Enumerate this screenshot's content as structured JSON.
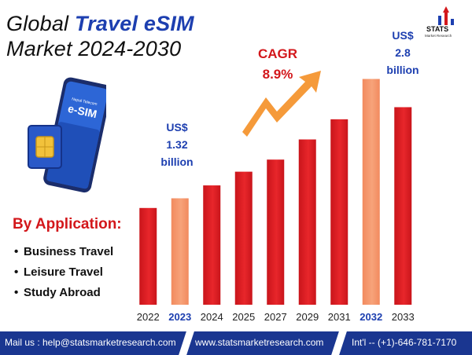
{
  "title": {
    "prefix": "Global ",
    "highlight": "Travel eSIM",
    "line2": "Market 2024-2030"
  },
  "logo": {
    "name": "STATS",
    "sub": "Market Research"
  },
  "phone": {
    "brand": "Nepal Telecom",
    "label": "e-SIM"
  },
  "sidebar": {
    "heading": "By Application:",
    "bullet": "•",
    "items": [
      "Business Travel",
      "Leisure Travel",
      "Study Abroad"
    ]
  },
  "callouts": {
    "left": {
      "line1": "US$",
      "line2": "1.32",
      "line3": "billion"
    },
    "right": {
      "line1": "US$",
      "line2": "2.8",
      "line3": "billion"
    },
    "cagr": {
      "line1": "CAGR",
      "line2": "8.9%"
    }
  },
  "footer": {
    "mail": "Mail us : help@statsmarketresearch.com",
    "web": "www.statsmarketresearch.com",
    "phone": "Int'l -- (+1)-646-781-7170"
  },
  "colors": {
    "bar": "#e8262b",
    "bar_highlight": "#f7a37a",
    "accent_blue": "#1d3fb0",
    "accent_red": "#d3171b",
    "footer": "#1a3690",
    "arrow": "#f59a3a"
  },
  "chart_data": {
    "type": "bar",
    "categories": [
      "2022",
      "2023",
      "2024",
      "2025",
      "2027",
      "2029",
      "2031",
      "2032",
      "2033"
    ],
    "values": [
      1.2,
      1.32,
      1.48,
      1.65,
      1.8,
      2.05,
      2.3,
      2.8,
      2.45
    ],
    "highlighted": [
      "2023",
      "2032"
    ],
    "ylim": [
      0,
      3.0
    ],
    "grid": false,
    "title": "Global Travel eSIM Market 2024-2030",
    "xlabel": "",
    "ylabel": ""
  }
}
